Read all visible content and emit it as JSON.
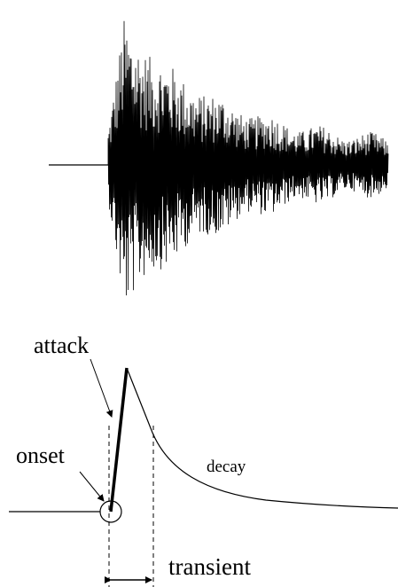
{
  "labels": {
    "attack": "attack",
    "onset": "onset",
    "decay": "decay",
    "transient": "transient"
  }
}
